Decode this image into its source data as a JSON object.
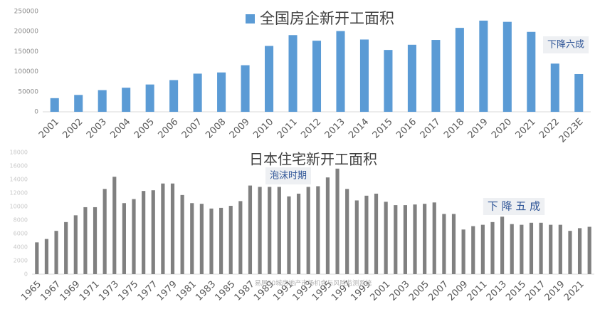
{
  "chart_data": [
    {
      "type": "bar",
      "legend": "top",
      "categories": [
        "2001",
        "2002",
        "2003",
        "2004",
        "2005",
        "2006",
        "2007",
        "2008",
        "2009",
        "2010",
        "2011",
        "2012",
        "2013",
        "2014",
        "2015",
        "2016",
        "2017",
        "2018",
        "2019",
        "2020",
        "2021",
        "2022",
        "2023E"
      ],
      "series": [
        {
          "name": "全国房企新开工面积",
          "color": "#5b9bd5",
          "values": [
            34000,
            42000,
            54000,
            60000,
            68000,
            79000,
            95000,
            98000,
            116000,
            164000,
            191000,
            177000,
            201000,
            180000,
            154000,
            167000,
            179000,
            209000,
            227000,
            224000,
            199000,
            120000,
            94000
          ]
        }
      ],
      "ylim": [
        0,
        250000
      ],
      "yticks": [
        0,
        50000,
        100000,
        150000,
        200000,
        250000
      ],
      "grid": false,
      "annotations": [
        "下降六成"
      ]
    },
    {
      "type": "bar",
      "title": "日本住宅新开工面积",
      "categories": [
        "1965",
        null,
        "1967",
        null,
        "1969",
        null,
        "1971",
        null,
        "1973",
        null,
        "1975",
        null,
        "1977",
        null,
        "1979",
        null,
        "1981",
        null,
        "1983",
        null,
        "1985",
        null,
        "1987",
        null,
        "1989",
        null,
        "1991",
        null,
        "1993",
        null,
        "1995",
        null,
        "1997",
        null,
        "1999",
        null,
        "2001",
        null,
        "2003",
        null,
        "2005",
        null,
        "2007",
        null,
        "2009",
        null,
        "2011",
        null,
        "2013",
        null,
        "2015",
        null,
        "2017",
        null,
        "2019",
        null,
        "2021",
        null
      ],
      "series": [
        {
          "name": null,
          "color": "#808080",
          "values": [
            4700,
            5200,
            6400,
            7700,
            8700,
            9900,
            9900,
            12600,
            14400,
            10500,
            11100,
            12300,
            12400,
            13400,
            13400,
            11700,
            10500,
            10400,
            9700,
            9800,
            10100,
            10800,
            13100,
            12900,
            12900,
            12900,
            11500,
            11900,
            12900,
            13000,
            14300,
            15600,
            12600,
            10900,
            11600,
            11900,
            10700,
            10200,
            10200,
            10300,
            10400,
            10600,
            8900,
            8900,
            6600,
            7100,
            7300,
            7700,
            8500,
            7400,
            7300,
            7600,
            7600,
            7300,
            7300,
            6400,
            6800,
            7000
          ]
        }
      ],
      "ylim": [
        0,
        18000
      ],
      "yticks": [
        0,
        2000,
        4000,
        6000,
        8000,
        10000,
        12000,
        14000,
        16000,
        18000
      ],
      "grid": false,
      "annotations": [
        "泡沫时期",
        "下 降 五 成"
      ],
      "source": "易居50城房地产市场机会与风险监测系统"
    }
  ]
}
